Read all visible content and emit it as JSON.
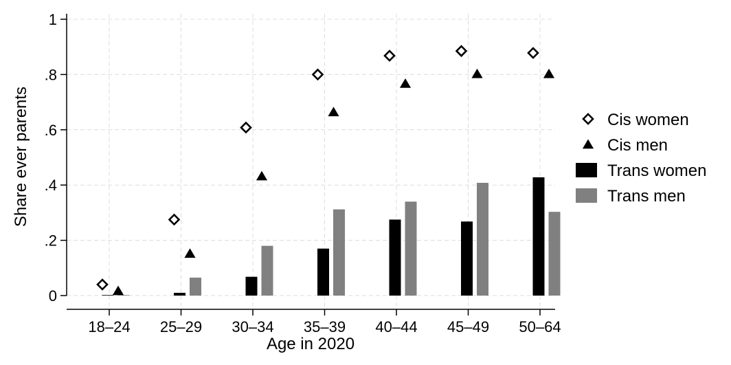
{
  "chart_data": {
    "type": "bar",
    "title": "",
    "xlabel": "Age in 2020",
    "ylabel": "Share ever parents",
    "categories": [
      "18–24",
      "25–29",
      "30–34",
      "35–39",
      "40–44",
      "45–49",
      "50–64"
    ],
    "ylim": [
      0,
      1
    ],
    "yticks": [
      {
        "value": 0,
        "label": "0"
      },
      {
        "value": 0.2,
        "label": ".2"
      },
      {
        "value": 0.4,
        "label": ".4"
      },
      {
        "value": 0.6,
        "label": ".6"
      },
      {
        "value": 0.8,
        "label": ".8"
      },
      {
        "value": 1,
        "label": "1"
      }
    ],
    "grid": true,
    "legend_position": "right",
    "series": [
      {
        "name": "Cis women",
        "mark": "hollow-diamond",
        "color": "#000000",
        "values": [
          0.04,
          0.275,
          0.608,
          0.8,
          0.868,
          0.885,
          0.878
        ]
      },
      {
        "name": "Cis men",
        "mark": "filled-triangle",
        "color": "#000000",
        "values": [
          0.015,
          0.15,
          0.43,
          0.662,
          0.765,
          0.8,
          0.8
        ]
      },
      {
        "name": "Trans women",
        "mark": "bar",
        "color": "#000000",
        "values": [
          0.002,
          0.01,
          0.068,
          0.17,
          0.275,
          0.268,
          0.428
        ]
      },
      {
        "name": "Trans men",
        "mark": "bar",
        "color": "#808080",
        "values": [
          0.0,
          0.065,
          0.18,
          0.312,
          0.34,
          0.408,
          0.303
        ]
      }
    ]
  }
}
